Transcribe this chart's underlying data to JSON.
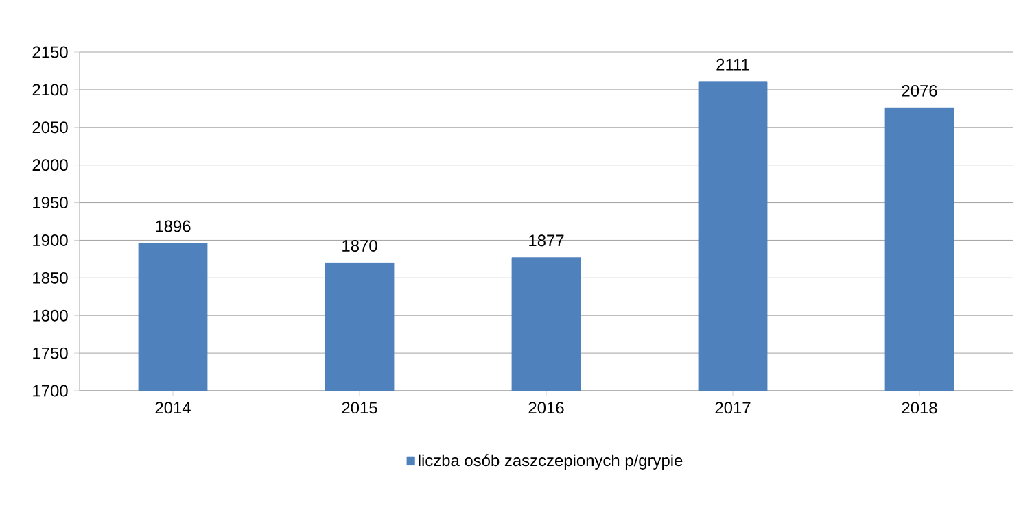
{
  "chart_data": {
    "type": "bar",
    "categories": [
      "2014",
      "2015",
      "2016",
      "2017",
      "2018"
    ],
    "series": [
      {
        "name": "liczba osób zaszczepionych p/grypie",
        "color": "#4f81bd",
        "values": [
          1896,
          1870,
          1877,
          2111,
          2076
        ]
      }
    ],
    "ylim": [
      1700,
      2150
    ],
    "yticks": [
      1700,
      1750,
      1800,
      1850,
      1900,
      1950,
      2000,
      2050,
      2100,
      2150
    ],
    "grid": "y",
    "legend": "bottom",
    "data_labels": true
  }
}
